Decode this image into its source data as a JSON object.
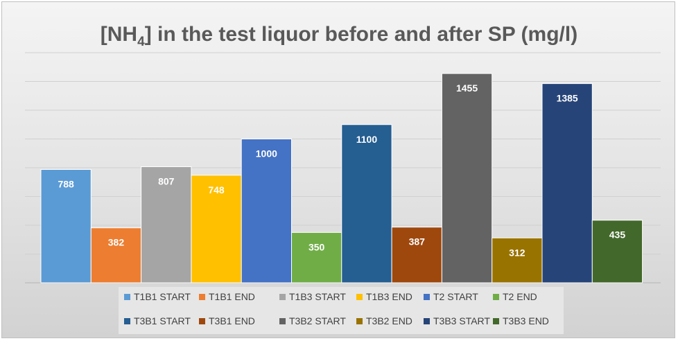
{
  "chart_data": {
    "type": "bar",
    "title_main": "[NH",
    "title_sub": "4",
    "title_rest": "] in the test liquor before and after SP (mg/l)",
    "xlabel": "",
    "ylabel": "",
    "ylim": [
      0,
      1600
    ],
    "grid": true,
    "legend_position": "bottom",
    "series": [
      {
        "name": "T1B1 START",
        "value": 788,
        "color": "#5b9bd5"
      },
      {
        "name": "T1B1 END",
        "value": 382,
        "color": "#ed7d31"
      },
      {
        "name": "T1B3 START",
        "value": 807,
        "color": "#a5a5a5"
      },
      {
        "name": "T1B3 END",
        "value": 748,
        "color": "#ffc000"
      },
      {
        "name": "T2 START",
        "value": 1000,
        "color": "#4472c4"
      },
      {
        "name": "T2 END",
        "value": 350,
        "color": "#70ad47"
      },
      {
        "name": "T3B1 START",
        "value": 1100,
        "color": "#255e91"
      },
      {
        "name": "T3B1 END",
        "value": 387,
        "color": "#9e480e"
      },
      {
        "name": "T3B2 START",
        "value": 1455,
        "color": "#636363"
      },
      {
        "name": "T3B2 END",
        "value": 312,
        "color": "#997300"
      },
      {
        "name": "T3B3 START",
        "value": 1385,
        "color": "#264478"
      },
      {
        "name": "T3B3 END",
        "value": 435,
        "color": "#43682b"
      }
    ]
  }
}
